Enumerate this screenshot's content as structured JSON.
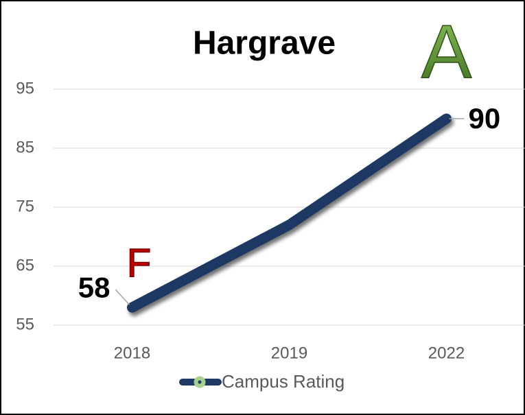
{
  "chart_data": {
    "type": "line",
    "title": "Hargrave",
    "categories": [
      "2018",
      "2019",
      "2022"
    ],
    "series": [
      {
        "name": "Campus Rating",
        "color": "#1f3864",
        "values": [
          58,
          72,
          90
        ],
        "value_labels": [
          "58",
          null,
          "90"
        ]
      }
    ],
    "annotations": [
      {
        "text": "F",
        "color": "#c00000",
        "category": 0
      },
      {
        "text": "A",
        "color": "#4e8a2e",
        "category": 2
      }
    ],
    "ylim": [
      55,
      105
    ],
    "yticks": [
      55,
      65,
      75,
      85,
      95
    ],
    "grid": true,
    "legend": "bottom"
  }
}
